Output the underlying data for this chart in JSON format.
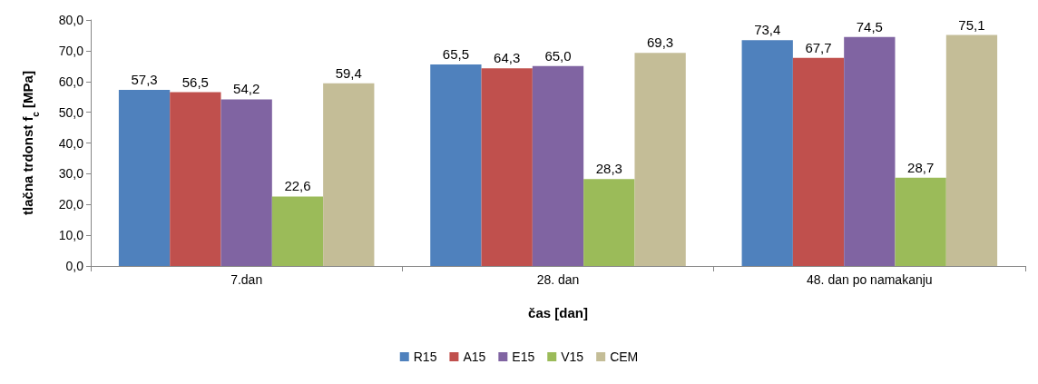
{
  "chart_data": {
    "type": "bar",
    "xlabel": "čas [dan]",
    "ylabel": "tlačna trdonst f$_{c}$ [MPa]",
    "categories": [
      "7.dan",
      "28. dan",
      "48. dan po namakanju"
    ],
    "series": [
      {
        "name": "R15",
        "color": "#4f81bd",
        "values": [
          57.3,
          65.5,
          73.4
        ],
        "value_labels": [
          "57,3",
          "65,5",
          "73,4"
        ]
      },
      {
        "name": "A15",
        "color": "#c0504d",
        "values": [
          56.5,
          64.3,
          67.7
        ],
        "value_labels": [
          "56,5",
          "64,3",
          "67,7"
        ]
      },
      {
        "name": "E15",
        "color": "#8064a2",
        "values": [
          54.2,
          65.0,
          74.5
        ],
        "value_labels": [
          "54,2",
          "65,0",
          "74,5"
        ]
      },
      {
        "name": "V15",
        "color": "#9bbb59",
        "values": [
          22.6,
          28.3,
          28.7
        ],
        "value_labels": [
          "22,6",
          "28,3",
          "28,7"
        ]
      },
      {
        "name": "CEM",
        "color": "#c4bd97",
        "values": [
          59.4,
          69.3,
          75.1
        ],
        "value_labels": [
          "59,4",
          "69,3",
          "75,1"
        ]
      }
    ],
    "ylim": [
      0,
      80
    ],
    "yticks": [
      {
        "value": 0,
        "label": "0,0"
      },
      {
        "value": 10,
        "label": "10,0"
      },
      {
        "value": 20,
        "label": "20,0"
      },
      {
        "value": 30,
        "label": "30,0"
      },
      {
        "value": 40,
        "label": "40,0"
      },
      {
        "value": 50,
        "label": "50,0"
      },
      {
        "value": 60,
        "label": "60,0"
      },
      {
        "value": 70,
        "label": "70,0"
      },
      {
        "value": 80,
        "label": "80,0"
      }
    ],
    "grid": false,
    "legend": "bottom"
  }
}
